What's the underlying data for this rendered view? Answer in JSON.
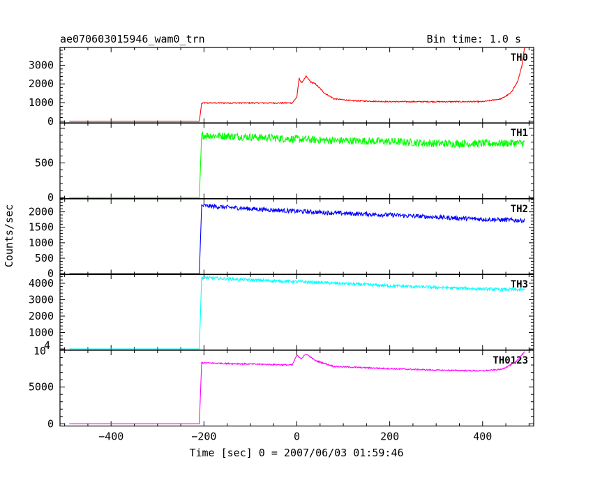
{
  "header": {
    "left": "ae070603015946_wam0_trn",
    "right": "Bin time: 1.0 s"
  },
  "chart_data": {
    "type": "line",
    "xlabel": "Time [sec] 0 = 2007/06/03 01:59:46",
    "ylabel": "Counts/sec",
    "xlim": [
      -510,
      510
    ],
    "x_ticks": [
      -400,
      -200,
      0,
      200,
      400
    ],
    "x_tick_labels": [
      "−400",
      "−200",
      "0",
      "200",
      "400"
    ],
    "grid": false,
    "panels": [
      {
        "name": "TH0",
        "color": "#ff0000",
        "ylim": [
          -100,
          3950
        ],
        "y_ticks": [
          0,
          1000,
          2000,
          3000
        ],
        "y_tick_labels": [
          "0",
          "1000",
          "2000",
          "3000"
        ],
        "points": [
          [
            -490,
            0
          ],
          [
            -210,
            0
          ],
          [
            -205,
            950
          ],
          [
            -200,
            980
          ],
          [
            -100,
            980
          ],
          [
            -10,
            980
          ],
          [
            0,
            1300
          ],
          [
            5,
            2300
          ],
          [
            10,
            2050
          ],
          [
            20,
            2400
          ],
          [
            30,
            2100
          ],
          [
            40,
            2000
          ],
          [
            60,
            1500
          ],
          [
            80,
            1200
          ],
          [
            120,
            1100
          ],
          [
            200,
            1050
          ],
          [
            300,
            1050
          ],
          [
            400,
            1050
          ],
          [
            440,
            1200
          ],
          [
            460,
            1500
          ],
          [
            475,
            2100
          ],
          [
            485,
            3000
          ],
          [
            490,
            3900
          ]
        ],
        "noise": 30
      },
      {
        "name": "TH1",
        "color": "#00ff00",
        "ylim": [
          -15,
          1080
        ],
        "y_ticks": [
          0,
          500
        ],
        "y_tick_labels": [
          "0",
          "500"
        ],
        "points": [
          [
            -490,
            0
          ],
          [
            -210,
            0
          ],
          [
            -205,
            900
          ],
          [
            -150,
            890
          ],
          [
            -50,
            860
          ],
          [
            50,
            830
          ],
          [
            200,
            810
          ],
          [
            300,
            780
          ],
          [
            400,
            780
          ],
          [
            490,
            790
          ]
        ],
        "noise": 55
      },
      {
        "name": "TH2",
        "color": "#0000ff",
        "ylim": [
          -30,
          2420
        ],
        "y_ticks": [
          0,
          500,
          1000,
          1500,
          2000
        ],
        "y_tick_labels": [
          "0",
          "500",
          "1000",
          "1500",
          "2000"
        ],
        "points": [
          [
            -490,
            0
          ],
          [
            -210,
            0
          ],
          [
            -205,
            2200
          ],
          [
            -100,
            2100
          ],
          [
            0,
            2020
          ],
          [
            100,
            1950
          ],
          [
            200,
            1900
          ],
          [
            300,
            1830
          ],
          [
            400,
            1760
          ],
          [
            490,
            1720
          ]
        ],
        "noise": 70
      },
      {
        "name": "TH3",
        "color": "#00ffff",
        "ylim": [
          -60,
          4550
        ],
        "y_ticks": [
          1000,
          2000,
          3000,
          4000
        ],
        "y_tick_labels": [
          "1000",
          "2000",
          "3000",
          "4000"
        ],
        "points": [
          [
            -490,
            0
          ],
          [
            -210,
            0
          ],
          [
            -205,
            4350
          ],
          [
            -100,
            4200
          ],
          [
            0,
            4100
          ],
          [
            100,
            3980
          ],
          [
            200,
            3850
          ],
          [
            300,
            3750
          ],
          [
            400,
            3650
          ],
          [
            490,
            3600
          ]
        ],
        "noise": 90
      },
      {
        "name": "TH0123",
        "color": "#ff00ff",
        "ylim": [
          -300,
          10000
        ],
        "y_ticks": [
          0,
          5000
        ],
        "y_tick_labels": [
          "0",
          "5000"
        ],
        "top_tick_label": "10",
        "top_tick_exponent": "4",
        "points": [
          [
            -490,
            0
          ],
          [
            -210,
            0
          ],
          [
            -205,
            8300
          ],
          [
            -150,
            8200
          ],
          [
            -10,
            8000
          ],
          [
            0,
            9300
          ],
          [
            10,
            8900
          ],
          [
            20,
            9500
          ],
          [
            40,
            8600
          ],
          [
            80,
            7800
          ],
          [
            200,
            7500
          ],
          [
            300,
            7300
          ],
          [
            400,
            7200
          ],
          [
            440,
            7400
          ],
          [
            470,
            8300
          ],
          [
            490,
            9800
          ]
        ],
        "noise": 90
      }
    ]
  }
}
